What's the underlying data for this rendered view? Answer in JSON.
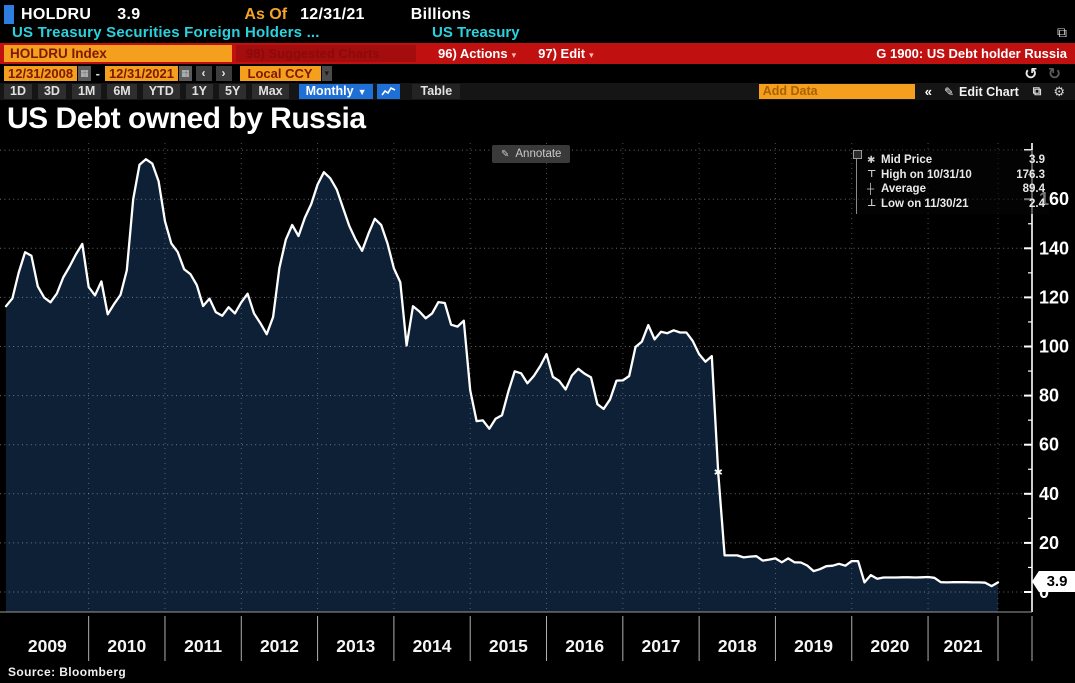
{
  "header": {
    "ticker": "HOLDRU",
    "last_value": "3.9",
    "as_of_label": "As Of",
    "as_of_date": "12/31/21",
    "units": "Billions",
    "subtitle": "US Treasury Securities Foreign Holders ...",
    "subtitle_right": "US Treasury",
    "window_icon": "⧉"
  },
  "command_bar": {
    "security": "HOLDRU Index",
    "suggested_charts": "98) Suggested Charts",
    "actions_label": "96) Actions",
    "edit_label": "97) Edit",
    "dropdown_arrow": "▾",
    "chart_title_right": "G 1900: US Debt holder Russia"
  },
  "date_bar": {
    "from": "12/31/2008",
    "to": "12/31/2021",
    "separator": "-",
    "calendar_icon": "▦",
    "prev_arrow": "‹",
    "next_arrow": "›",
    "currency": "Local CCY",
    "currency_arrow": "▾",
    "undo_icon": "↺",
    "redo_icon": "↻"
  },
  "range_bar": {
    "ranges": [
      "1D",
      "3D",
      "1M",
      "6M",
      "YTD",
      "1Y",
      "5Y",
      "Max"
    ],
    "period": "Monthly",
    "period_arrow": "▼",
    "table_label": "Table",
    "add_data_placeholder": "Add Data",
    "collapse_icon": "«",
    "pencil_icon": "✎",
    "edit_chart_label": "Edit Chart",
    "copy_icon": "⧉",
    "gear_icon": "⚙"
  },
  "chart": {
    "title": "US Debt owned by Russia",
    "annotate_icon": "✎",
    "annotate_label": "Annotate",
    "legend_rows": [
      {
        "marker": "✱",
        "label": "Mid Price",
        "value": "3.9"
      },
      {
        "marker": "⊤",
        "label": "High on 10/31/10",
        "value": "176.3"
      },
      {
        "marker": "┼",
        "label": "Average",
        "value": "89.4"
      },
      {
        "marker": "⊥",
        "label": "Low on 11/30/21",
        "value": "2.4"
      }
    ],
    "last_price_badge": "3.9",
    "source": "Source: Bloomberg"
  },
  "chart_data": {
    "type": "area",
    "title": "US Debt owned by Russia",
    "units": "USD Billions",
    "frequency": "monthly",
    "x_start": "2008-12",
    "x_end": "2021-12",
    "categories": [
      "2009",
      "2010",
      "2011",
      "2012",
      "2013",
      "2014",
      "2015",
      "2016",
      "2017",
      "2018",
      "2019",
      "2020",
      "2021"
    ],
    "values": [
      116.4,
      119.6,
      130.1,
      138.4,
      137.0,
      124.5,
      119.9,
      118.0,
      121.6,
      128.1,
      132.6,
      137.5,
      141.8,
      124.2,
      120.8,
      126.5,
      113.1,
      117.3,
      121.0,
      131.0,
      160.0,
      174.0,
      176.3,
      174.5,
      167.3,
      151.0,
      142.0,
      138.5,
      131.5,
      129.5,
      125.0,
      116.5,
      119.5,
      114.0,
      112.5,
      116.0,
      113.5,
      118.0,
      121.5,
      113.5,
      109.5,
      105.0,
      112.0,
      132.0,
      143.5,
      149.5,
      145.0,
      152.5,
      158.0,
      166.0,
      171.0,
      168.5,
      164.0,
      156.5,
      149.0,
      143.5,
      139.0,
      146.0,
      152.0,
      149.5,
      142.0,
      131.8,
      126.2,
      100.4,
      116.4,
      114.3,
      111.5,
      113.5,
      118.1,
      117.7,
      108.9,
      108.1,
      110.5,
      82.2,
      69.6,
      69.9,
      66.5,
      70.6,
      72.0,
      81.7,
      89.9,
      89.1,
      85.0,
      88.0,
      92.0,
      96.9,
      87.6,
      86.0,
      82.5,
      88.2,
      90.9,
      88.9,
      87.4,
      76.5,
      74.6,
      78.5,
      86.1,
      86.2,
      88.0,
      99.8,
      102.0,
      108.7,
      102.9,
      106.0,
      105.4,
      106.6,
      105.7,
      105.7,
      102.2,
      96.9,
      93.8,
      96.1,
      48.7,
      14.9,
      14.9,
      14.9,
      14.1,
      14.4,
      14.6,
      12.8,
      13.2,
      13.7,
      12.1,
      13.7,
      12.1,
      12.0,
      10.8,
      8.5,
      9.3,
      10.5,
      10.7,
      11.5,
      10.7,
      12.6,
      12.6,
      3.9,
      6.9,
      5.4,
      5.9,
      5.9,
      5.9,
      6.0,
      6.0,
      5.9,
      6.0,
      6.1,
      5.8,
      4.0,
      3.9,
      4.0,
      4.0,
      4.0,
      3.9,
      3.9,
      3.8,
      2.4,
      3.9
    ],
    "yticks": [
      0,
      20,
      40,
      60,
      80,
      100,
      120,
      140,
      160
    ],
    "ytick_minor_step": 10,
    "ylim": [
      -8.1,
      183
    ],
    "high": {
      "date": "10/31/10",
      "value": 176.3
    },
    "low": {
      "date": "11/30/21",
      "value": 2.4
    },
    "average": 89.4,
    "last": 3.9,
    "marker_index": 112,
    "marker_glyph": "✱",
    "grid": "dotted",
    "legend_position": "top-right",
    "line_color": "#ffffff",
    "area_color": "#0d2036",
    "background_color": "#000000"
  }
}
